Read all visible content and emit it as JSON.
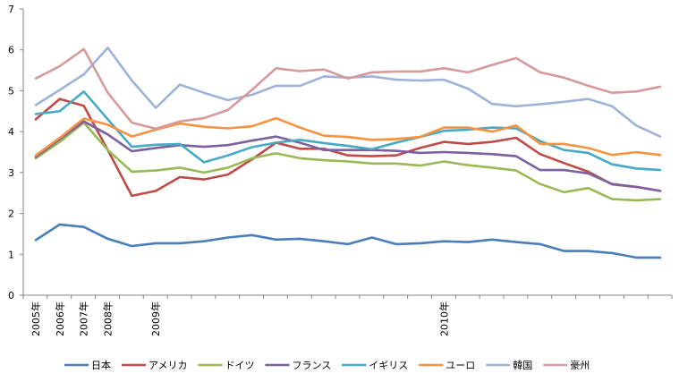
{
  "chart_data": {
    "type": "line",
    "title": "",
    "xlabel": "",
    "ylabel": "",
    "ylim": [
      0,
      7
    ],
    "yticks": [
      0,
      1,
      2,
      3,
      4,
      5,
      6,
      7
    ],
    "grid": false,
    "legend_position": "bottom",
    "x_tick_labels": [
      {
        "index": 0,
        "label": "2005年"
      },
      {
        "index": 1,
        "label": "2006年"
      },
      {
        "index": 2,
        "label": "2007年"
      },
      {
        "index": 3,
        "label": "2008年"
      },
      {
        "index": 5,
        "label": "2009年"
      },
      {
        "index": 17,
        "label": "2010年"
      }
    ],
    "point_count": 27,
    "series": [
      {
        "name": "日本",
        "color": "#4A7EBB",
        "values": [
          1.35,
          1.73,
          1.67,
          1.38,
          1.2,
          1.27,
          1.27,
          1.32,
          1.41,
          1.47,
          1.36,
          1.38,
          1.32,
          1.25,
          1.41,
          1.25,
          1.27,
          1.32,
          1.3,
          1.36,
          1.3,
          1.25,
          1.08,
          1.08,
          1.03,
          0.92,
          0.92
        ]
      },
      {
        "name": "アメリカ",
        "color": "#BE4B48",
        "values": [
          4.3,
          4.8,
          4.63,
          3.55,
          2.43,
          2.55,
          2.89,
          2.83,
          2.95,
          3.32,
          3.73,
          3.58,
          3.58,
          3.42,
          3.4,
          3.42,
          3.6,
          3.75,
          3.7,
          3.75,
          3.85,
          3.45,
          3.23,
          3.02,
          2.71,
          2.65,
          2.55
        ]
      },
      {
        "name": "ドイツ",
        "color": "#98B954",
        "values": [
          3.35,
          3.75,
          4.22,
          3.55,
          3.02,
          3.05,
          3.12,
          3.0,
          3.12,
          3.35,
          3.47,
          3.35,
          3.3,
          3.27,
          3.22,
          3.22,
          3.17,
          3.27,
          3.18,
          3.12,
          3.05,
          2.72,
          2.52,
          2.62,
          2.35,
          2.32,
          2.35
        ]
      },
      {
        "name": "フランス",
        "color": "#7D60A0",
        "values": [
          3.38,
          3.82,
          4.25,
          3.93,
          3.52,
          3.6,
          3.67,
          3.63,
          3.67,
          3.78,
          3.88,
          3.73,
          3.55,
          3.55,
          3.55,
          3.53,
          3.48,
          3.5,
          3.48,
          3.45,
          3.4,
          3.06,
          3.06,
          2.98,
          2.72,
          2.65,
          2.55
        ]
      },
      {
        "name": "イギリス",
        "color": "#46AAC5",
        "values": [
          4.43,
          4.5,
          4.98,
          4.3,
          3.63,
          3.68,
          3.7,
          3.25,
          3.42,
          3.62,
          3.73,
          3.8,
          3.72,
          3.65,
          3.57,
          3.73,
          3.87,
          4.02,
          4.05,
          4.1,
          4.08,
          3.77,
          3.55,
          3.48,
          3.2,
          3.1,
          3.06
        ]
      },
      {
        "name": "ユーロ",
        "color": "#F69240",
        "values": [
          3.42,
          3.85,
          4.32,
          4.17,
          3.88,
          4.05,
          4.2,
          4.12,
          4.08,
          4.13,
          4.33,
          4.1,
          3.9,
          3.87,
          3.8,
          3.82,
          3.87,
          4.1,
          4.1,
          4.0,
          4.15,
          3.7,
          3.7,
          3.6,
          3.43,
          3.5,
          3.43
        ]
      },
      {
        "name": "韓国",
        "color": "#9DB3D8",
        "values": [
          4.65,
          5.02,
          5.4,
          6.05,
          5.25,
          4.58,
          5.15,
          4.95,
          4.77,
          4.9,
          5.12,
          5.12,
          5.35,
          5.32,
          5.35,
          5.27,
          5.25,
          5.27,
          5.05,
          4.68,
          4.62,
          4.67,
          4.73,
          4.8,
          4.62,
          4.15,
          3.88
        ]
      },
      {
        "name": "豪州",
        "color": "#D79A9A",
        "values": [
          5.3,
          5.6,
          6.02,
          4.95,
          4.22,
          4.07,
          4.25,
          4.33,
          4.53,
          5.02,
          5.55,
          5.48,
          5.52,
          5.3,
          5.45,
          5.47,
          5.47,
          5.55,
          5.45,
          5.63,
          5.8,
          5.45,
          5.32,
          5.12,
          4.95,
          4.98,
          5.1
        ]
      }
    ]
  }
}
